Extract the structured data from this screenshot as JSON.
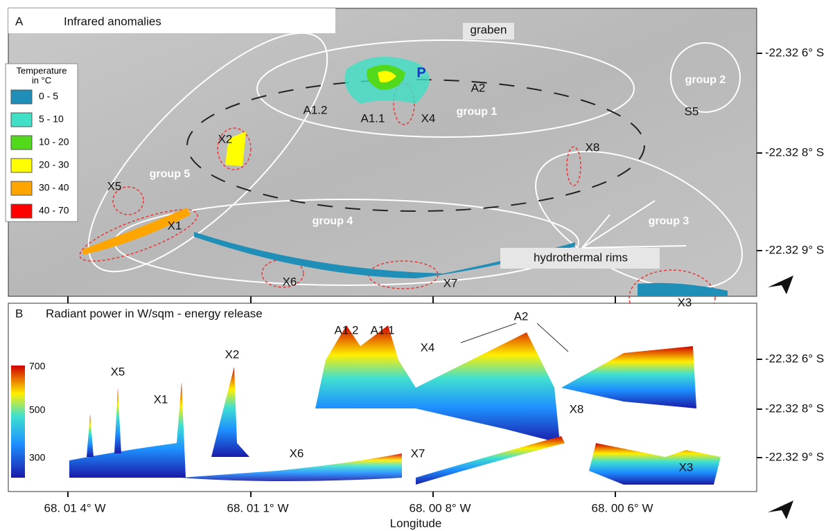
{
  "panel_a": {
    "label": "A",
    "title": "Infrared anomalies",
    "legend": {
      "title_lines": [
        "Temperature",
        "in °C"
      ],
      "items": [
        {
          "label": "0 - 5",
          "color": "#1f8fb8"
        },
        {
          "label": "5 - 10",
          "color": "#3fe0c6"
        },
        {
          "label": "10 - 20",
          "color": "#52d91c"
        },
        {
          "label": "20 - 30",
          "color": "#ffff00"
        },
        {
          "label": "30 - 40",
          "color": "#ffa500"
        },
        {
          "label": "40 - 70",
          "color": "#ff0000"
        }
      ]
    },
    "annotations": [
      "graben",
      "P",
      "A2",
      "A1.2",
      "A1.1",
      "X4",
      "group 1",
      "group 2",
      "S5",
      "X8",
      "X2",
      "group 5",
      "X5",
      "X1",
      "group 4",
      "group 3",
      "hydrothermal rims",
      "X6",
      "X7",
      "X3"
    ]
  },
  "panel_b": {
    "label": "B",
    "title": "Radiant power in W/sqm - energy release",
    "colorbar_ticks": [
      700,
      500,
      300
    ],
    "annotations": [
      "A2",
      "A1.2",
      "A1.1",
      "X4",
      "X2",
      "X5",
      "X1",
      "X8",
      "X6",
      "X7",
      "X3"
    ]
  },
  "latitude_labels": [
    "-22.32 6°  S",
    "-22.32 8°  S",
    "-22.32 9°  S"
  ],
  "longitude_labels": [
    "68. 01 4°  W",
    "68. 01 1°  W",
    "68. 00 8°  W",
    "68. 00 6°  W"
  ],
  "x_axis_label": "Longitude"
}
